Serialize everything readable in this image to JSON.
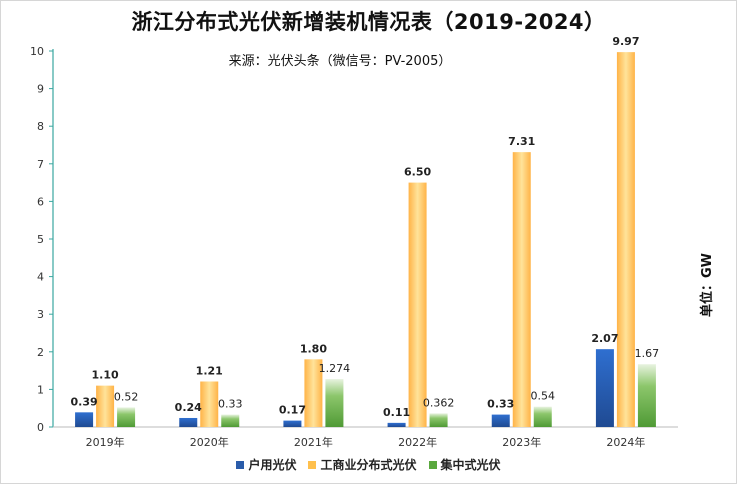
{
  "chart_data": {
    "type": "bar",
    "title": "浙江分布式光伏新增装机情况表（2019-2024）",
    "subtitle": "来源：光伏头条（微信号：PV-2005）",
    "unit_label": "单位：GW",
    "categories": [
      "2019年",
      "2020年",
      "2021年",
      "2022年",
      "2023年",
      "2024年"
    ],
    "series": [
      {
        "name": "户用光伏",
        "color": "#2a5caa",
        "values": [
          0.39,
          0.24,
          0.17,
          0.11,
          0.33,
          2.07
        ],
        "labels": [
          "0.39",
          "0.24",
          "0.17",
          "0.11",
          "0.33",
          "2.07"
        ],
        "label_bold": true
      },
      {
        "name": "工商业分布式光伏",
        "color": "#ffc04d",
        "values": [
          1.1,
          1.21,
          1.8,
          6.5,
          7.31,
          9.97
        ],
        "labels": [
          "1.10",
          "1.21",
          "1.80",
          "6.50",
          "7.31",
          "9.97"
        ],
        "label_bold": true
      },
      {
        "name": "集中式光伏",
        "color": "#5aa83e",
        "values": [
          0.52,
          0.33,
          1.274,
          0.362,
          0.54,
          1.67
        ],
        "labels": [
          "0.52",
          "0.33",
          "1.274",
          "0.362",
          "0.54",
          "1.67"
        ],
        "label_bold": false
      }
    ],
    "yticks": [
      "0",
      "1",
      "2",
      "3",
      "4",
      "5",
      "6",
      "7",
      "8",
      "9",
      "10"
    ],
    "ylim": [
      0,
      10
    ],
    "grid": false,
    "legend_position": "bottom"
  }
}
